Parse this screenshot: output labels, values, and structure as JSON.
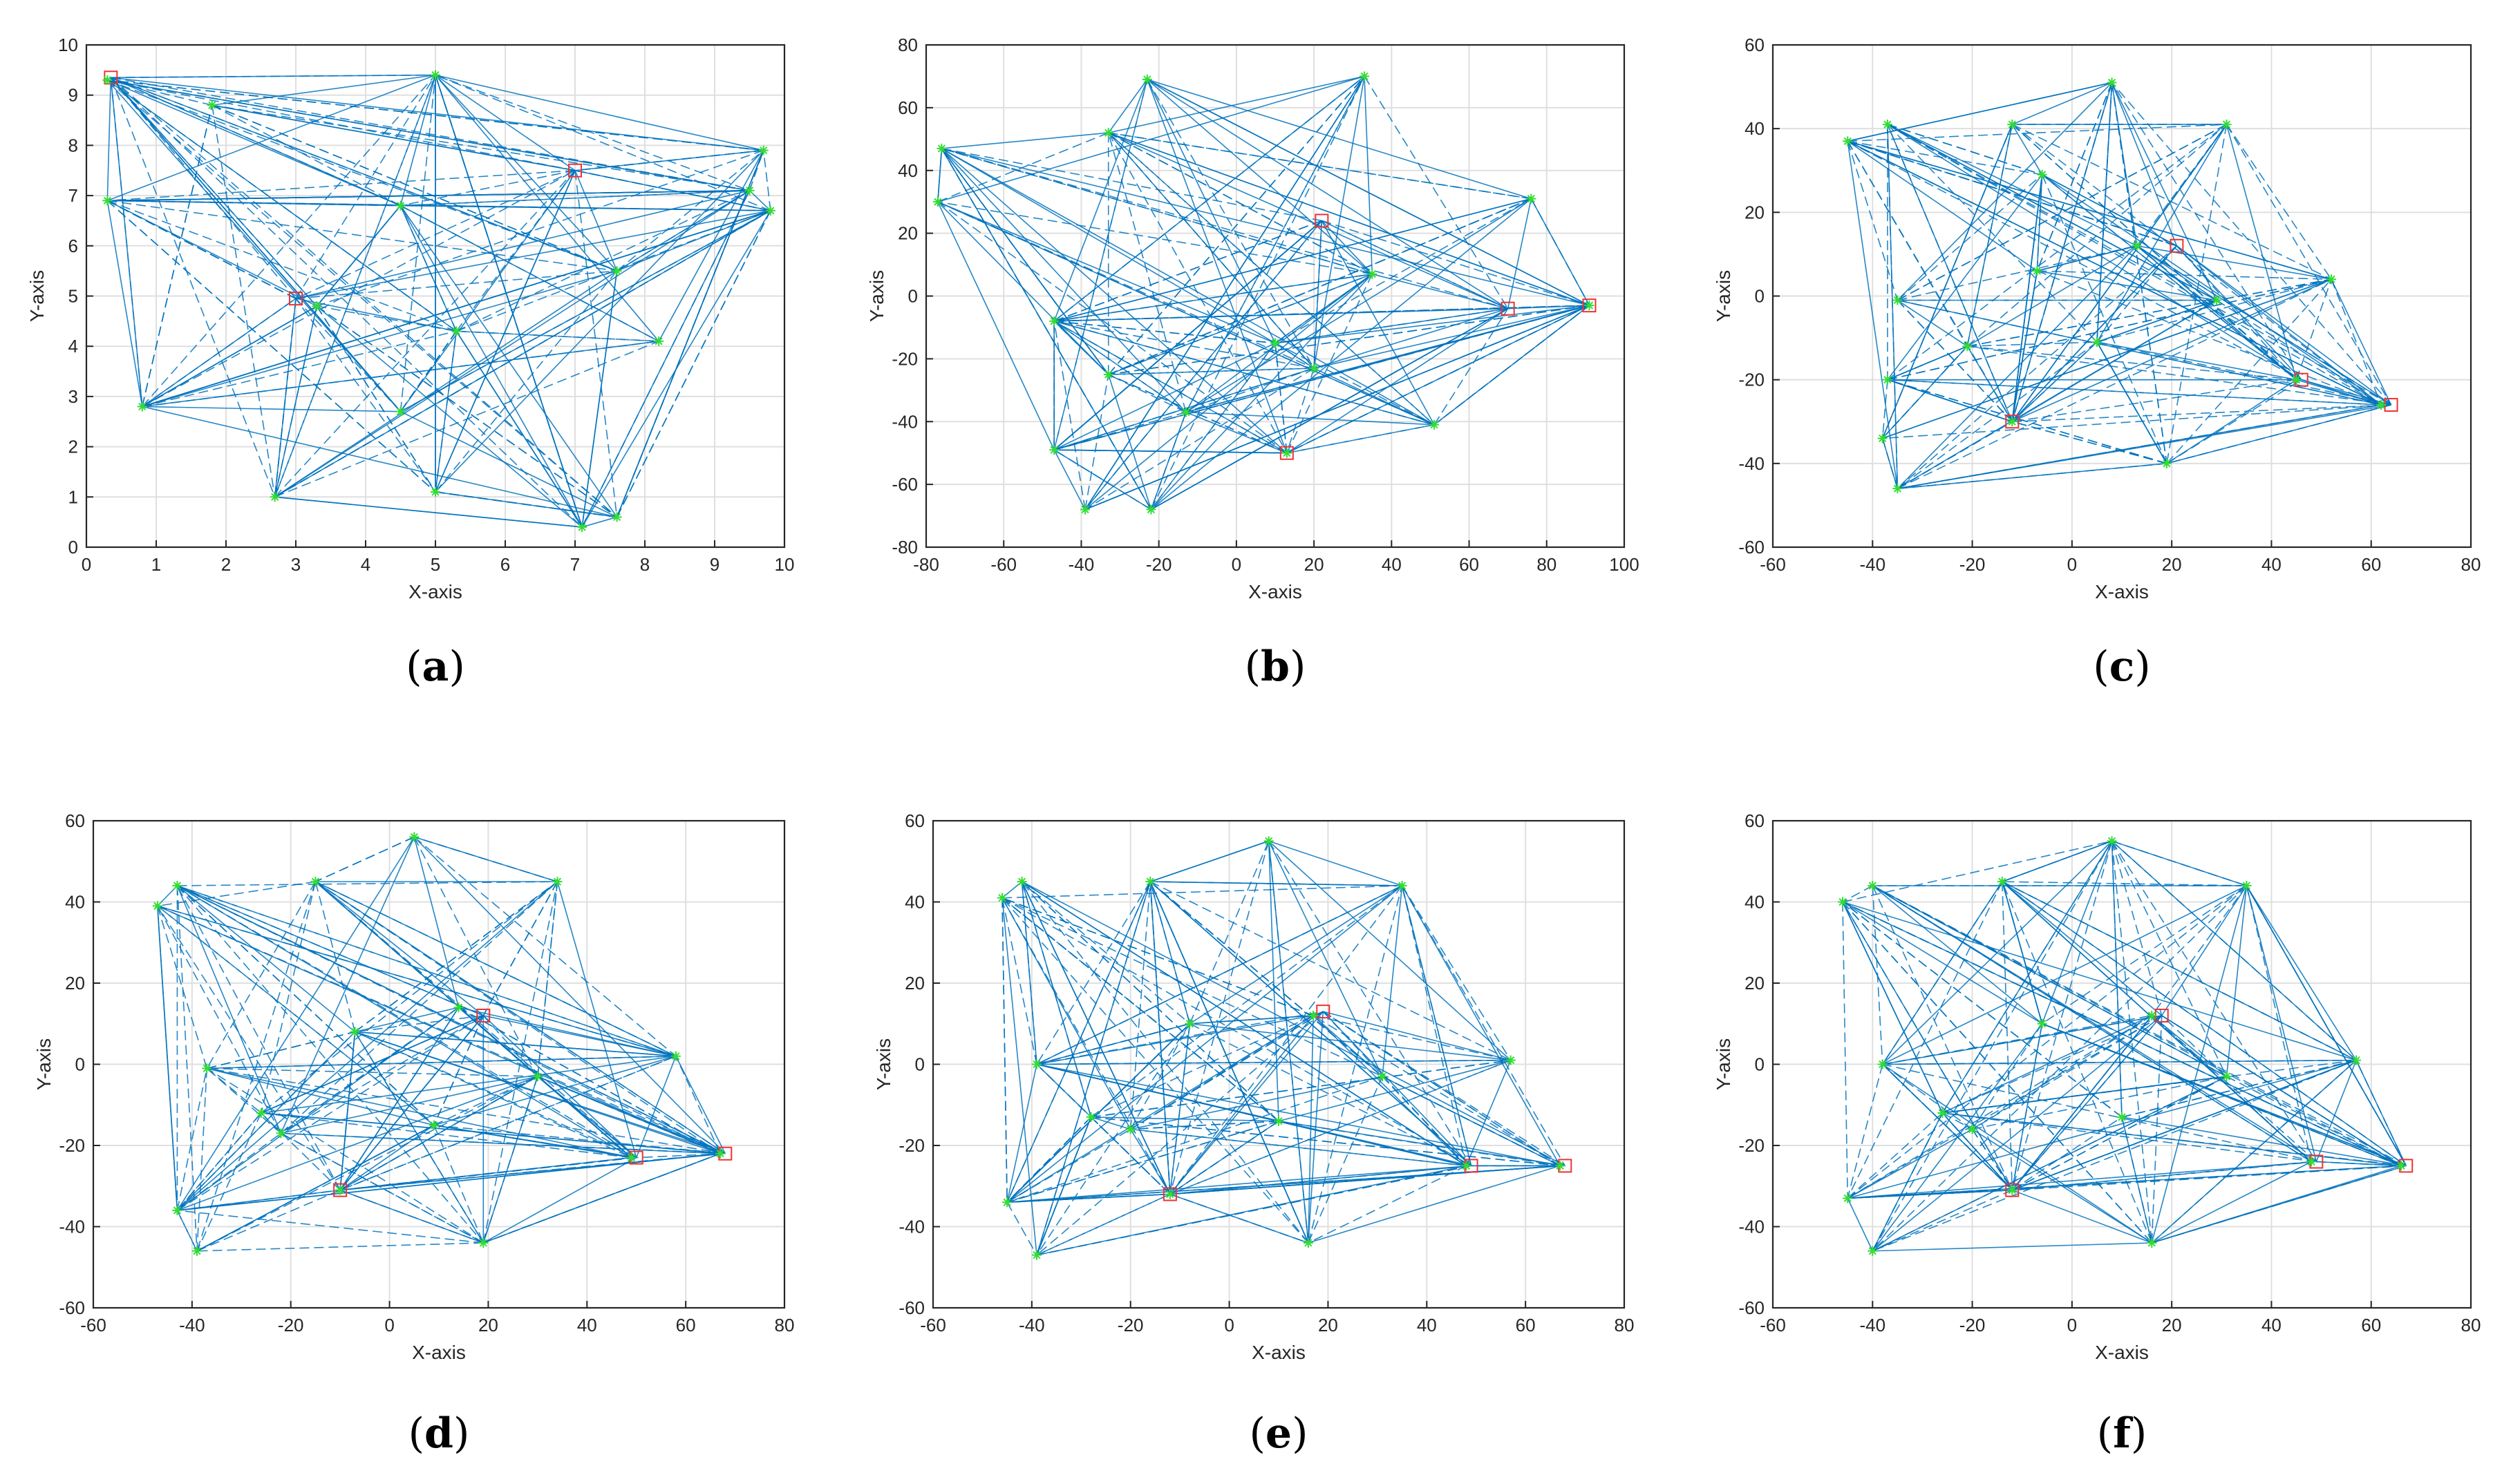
{
  "chart_data": [
    {
      "id": "a",
      "type": "scatter",
      "label": "a",
      "xlabel": "X-axis",
      "ylabel": "Y-axis",
      "xlim": [
        0,
        10
      ],
      "ylim": [
        0,
        10
      ],
      "xticks": [
        0,
        1,
        2,
        3,
        4,
        5,
        6,
        7,
        8,
        9,
        10
      ],
      "yticks": [
        0,
        1,
        2,
        3,
        4,
        5,
        6,
        7,
        8,
        9,
        10
      ],
      "grid": true,
      "stars": [
        [
          0.3,
          9.3
        ],
        [
          5.0,
          9.4
        ],
        [
          9.7,
          7.9
        ],
        [
          9.8,
          6.7
        ],
        [
          0.3,
          6.9
        ],
        [
          0.8,
          2.8
        ],
        [
          2.7,
          1.0
        ],
        [
          5.0,
          1.1
        ],
        [
          7.1,
          0.4
        ],
        [
          7.6,
          0.6
        ],
        [
          8.2,
          4.1
        ],
        [
          4.5,
          2.7
        ],
        [
          5.3,
          4.3
        ],
        [
          3.3,
          4.8
        ],
        [
          4.5,
          6.8
        ],
        [
          9.5,
          7.1
        ],
        [
          7.6,
          5.5
        ],
        [
          1.8,
          8.8
        ]
      ],
      "squares": [
        [
          0.35,
          9.35
        ],
        [
          7.0,
          7.5
        ],
        [
          3.0,
          4.95
        ]
      ],
      "edge_count": 200
    },
    {
      "id": "b",
      "type": "scatter",
      "label": "b",
      "xlabel": "X-axis",
      "ylabel": "Y-axis",
      "xlim": [
        -80,
        100
      ],
      "ylim": [
        -80,
        80
      ],
      "xticks": [
        -80,
        -60,
        -40,
        -20,
        0,
        20,
        40,
        60,
        80,
        100
      ],
      "yticks": [
        -80,
        -60,
        -40,
        -20,
        0,
        20,
        40,
        60,
        80
      ],
      "grid": true,
      "stars": [
        [
          -76,
          47
        ],
        [
          -77,
          30
        ],
        [
          -23,
          69
        ],
        [
          33,
          70
        ],
        [
          76,
          31
        ],
        [
          91,
          -3
        ],
        [
          51,
          -41
        ],
        [
          -39,
          -68
        ],
        [
          -22,
          -68
        ],
        [
          -47,
          -8
        ],
        [
          -47,
          -49
        ],
        [
          -33,
          52
        ],
        [
          -33,
          -25
        ],
        [
          -13,
          -37
        ],
        [
          13,
          -50
        ],
        [
          20,
          -23
        ],
        [
          35,
          7
        ],
        [
          10,
          -15
        ]
      ],
      "squares": [
        [
          70,
          -4
        ],
        [
          91,
          -3
        ],
        [
          13,
          -50
        ],
        [
          22,
          24
        ]
      ],
      "edge_count": 200
    },
    {
      "id": "c",
      "type": "scatter",
      "label": "c",
      "xlabel": "X-axis",
      "ylabel": "Y-axis",
      "xlim": [
        -60,
        80
      ],
      "ylim": [
        -60,
        60
      ],
      "xticks": [
        -60,
        -40,
        -20,
        0,
        20,
        40,
        60,
        80
      ],
      "yticks": [
        -60,
        -40,
        -20,
        0,
        20,
        40,
        60
      ],
      "grid": true,
      "stars": [
        [
          -45,
          37
        ],
        [
          -37,
          41
        ],
        [
          -12,
          41
        ],
        [
          8,
          51
        ],
        [
          31,
          41
        ],
        [
          52,
          4
        ],
        [
          62,
          -26
        ],
        [
          19,
          -40
        ],
        [
          -35,
          -46
        ],
        [
          -38,
          -34
        ],
        [
          -37,
          -20
        ],
        [
          -35,
          -1
        ],
        [
          -21,
          -12
        ],
        [
          -12,
          -30
        ],
        [
          -7,
          6
        ],
        [
          5,
          -11
        ],
        [
          13,
          12
        ],
        [
          29,
          -1
        ],
        [
          45,
          -20
        ],
        [
          -6,
          29
        ]
      ],
      "squares": [
        [
          64,
          -26
        ],
        [
          46,
          -20
        ],
        [
          -12,
          -30
        ],
        [
          21,
          12
        ]
      ],
      "edge_count": 200
    },
    {
      "id": "d",
      "type": "scatter",
      "label": "d",
      "xlabel": "X-axis",
      "ylabel": "Y-axis",
      "xlim": [
        -60,
        80
      ],
      "ylim": [
        -60,
        60
      ],
      "xticks": [
        -60,
        -40,
        -20,
        0,
        20,
        40,
        60,
        80
      ],
      "yticks": [
        -60,
        -40,
        -20,
        0,
        20,
        40,
        60
      ],
      "grid": true,
      "stars": [
        [
          -47,
          39
        ],
        [
          -43,
          44
        ],
        [
          -15,
          45
        ],
        [
          5,
          56
        ],
        [
          34,
          45
        ],
        [
          58,
          2
        ],
        [
          67,
          -22
        ],
        [
          19,
          -44
        ],
        [
          -39,
          -46
        ],
        [
          -43,
          -36
        ],
        [
          -37,
          -1
        ],
        [
          -26,
          -12
        ],
        [
          -10,
          -31
        ],
        [
          -7,
          8
        ],
        [
          9,
          -15
        ],
        [
          14,
          14
        ],
        [
          30,
          -3
        ],
        [
          49,
          -23
        ],
        [
          -22,
          -17
        ]
      ],
      "squares": [
        [
          68,
          -22
        ],
        [
          50,
          -23
        ],
        [
          -10,
          -31
        ],
        [
          19,
          12
        ]
      ],
      "edge_count": 200
    },
    {
      "id": "e",
      "type": "scatter",
      "label": "e",
      "xlabel": "X-axis",
      "ylabel": "Y-axis",
      "xlim": [
        -60,
        80
      ],
      "ylim": [
        -60,
        60
      ],
      "xticks": [
        -60,
        -40,
        -20,
        0,
        20,
        40,
        60,
        80
      ],
      "yticks": [
        -60,
        -40,
        -20,
        0,
        20,
        40,
        60
      ],
      "grid": true,
      "stars": [
        [
          -46,
          41
        ],
        [
          -42,
          45
        ],
        [
          -16,
          45
        ],
        [
          8,
          55
        ],
        [
          35,
          44
        ],
        [
          57,
          1
        ],
        [
          67,
          -25
        ],
        [
          16,
          -44
        ],
        [
          -39,
          -47
        ],
        [
          -45,
          -34
        ],
        [
          -39,
          0
        ],
        [
          -28,
          -13
        ],
        [
          -12,
          -32
        ],
        [
          -8,
          10
        ],
        [
          10,
          -14
        ],
        [
          17,
          12
        ],
        [
          31,
          -3
        ],
        [
          48,
          -25
        ],
        [
          -20,
          -16
        ]
      ],
      "squares": [
        [
          68,
          -25
        ],
        [
          49,
          -25
        ],
        [
          -12,
          -32
        ],
        [
          19,
          13
        ]
      ],
      "edge_count": 200
    },
    {
      "id": "f",
      "type": "scatter",
      "label": "f",
      "xlabel": "X-axis",
      "ylabel": "Y-axis",
      "xlim": [
        -60,
        80
      ],
      "ylim": [
        -60,
        60
      ],
      "xticks": [
        -60,
        -40,
        -20,
        0,
        20,
        40,
        60,
        80
      ],
      "yticks": [
        -60,
        -40,
        -20,
        0,
        20,
        40,
        60
      ],
      "grid": true,
      "stars": [
        [
          -46,
          40
        ],
        [
          -40,
          44
        ],
        [
          -14,
          45
        ],
        [
          8,
          55
        ],
        [
          35,
          44
        ],
        [
          57,
          1
        ],
        [
          66,
          -25
        ],
        [
          16,
          -44
        ],
        [
          -40,
          -46
        ],
        [
          -45,
          -33
        ],
        [
          -38,
          0
        ],
        [
          -26,
          -12
        ],
        [
          -12,
          -31
        ],
        [
          -6,
          10
        ],
        [
          10,
          -13
        ],
        [
          16,
          12
        ],
        [
          31,
          -3
        ],
        [
          48,
          -24
        ],
        [
          -20,
          -16
        ]
      ],
      "squares": [
        [
          67,
          -25
        ],
        [
          49,
          -24
        ],
        [
          -12,
          -31
        ],
        [
          18,
          12
        ]
      ],
      "edge_count": 200
    }
  ]
}
